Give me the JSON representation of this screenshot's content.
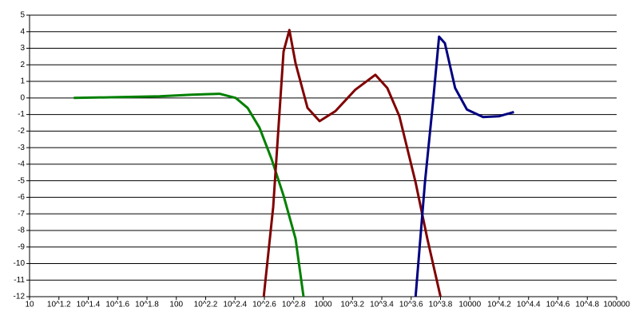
{
  "chart_data": {
    "type": "line",
    "xscale": "log",
    "grid": true,
    "xlim": [
      10,
      100000
    ],
    "xticks": [
      10,
      {
        "value": 15.85,
        "label": "10^1.2"
      },
      {
        "value": 25.12,
        "label": "10^1.4"
      },
      {
        "value": 39.81,
        "label": "10^1.6"
      },
      {
        "value": 63.1,
        "label": "10^1.8"
      },
      100,
      {
        "value": 158.5,
        "label": "10^2.2"
      },
      {
        "value": 251.2,
        "label": "10^2.4"
      },
      {
        "value": 398.1,
        "label": "10^2.6"
      },
      {
        "value": 631,
        "label": "10^2.8"
      },
      1000,
      {
        "value": 1585,
        "label": "10^3.2"
      },
      {
        "value": 2512,
        "label": "10^3.4"
      },
      {
        "value": 3981,
        "label": "10^3.6"
      },
      {
        "value": 6310,
        "label": "10^3.8"
      },
      10000,
      {
        "value": 15850,
        "label": "10^4.2"
      },
      {
        "value": 25120,
        "label": "10^4.4"
      },
      {
        "value": 39810,
        "label": "10^4.6"
      },
      {
        "value": 63100,
        "label": "10^4.8"
      },
      100000
    ],
    "ylim": [
      -12,
      5
    ],
    "yticks": [
      -12,
      -11,
      -10,
      -9,
      -8,
      -7,
      -6,
      -5,
      -4,
      -3,
      -2,
      -1,
      0,
      1,
      2,
      3,
      4,
      5
    ],
    "series": [
      {
        "color": "#008000",
        "x": [
          20,
          41,
          77,
          127,
          197,
          254,
          306,
          369,
          446,
          538,
          649,
          736
        ],
        "values": [
          0,
          0.05,
          0.1,
          0.2,
          0.25,
          0,
          -0.6,
          -1.8,
          -3.7,
          -5.9,
          -8.5,
          -12
        ]
      },
      {
        "color": "#800000",
        "x": [
          394,
          457,
          538,
          589,
          649,
          783,
          946,
          1213,
          1660,
          2270,
          2740,
          3310,
          4270,
          5130,
          6310
        ],
        "values": [
          -12,
          -6.6,
          2.8,
          4.1,
          2.1,
          -0.6,
          -1.4,
          -0.8,
          0.5,
          1.4,
          0.6,
          -1.1,
          -5.1,
          -8.5,
          -12
        ]
      },
      {
        "color": "#000080",
        "x": [
          4270,
          4940,
          5600,
          6170,
          6760,
          7940,
          9550,
          12300,
          15850,
          19950
        ],
        "values": [
          -12,
          -5.1,
          -0.3,
          3.7,
          3.3,
          0.6,
          -0.7,
          -1.15,
          -1.1,
          -0.85
        ]
      }
    ]
  }
}
